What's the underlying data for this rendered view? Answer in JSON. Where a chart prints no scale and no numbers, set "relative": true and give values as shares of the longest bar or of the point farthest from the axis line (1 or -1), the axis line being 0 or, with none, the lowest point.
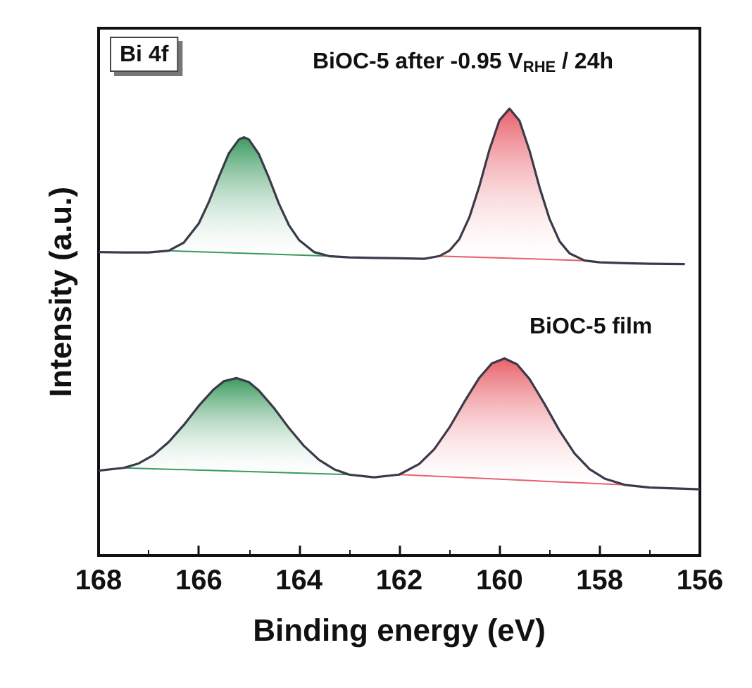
{
  "chart_data": {
    "type": "line",
    "xlabel": "Binding energy (eV)",
    "ylabel": "Intensity (a.u.)",
    "relative": true,
    "marker": "none",
    "xlim": [
      168,
      156
    ],
    "xticks": [
      168,
      166,
      164,
      162,
      160,
      158,
      156
    ],
    "annotations": [
      "Bi 4f",
      "BiOC-5 after -0.95 V$_{RHE}$ / 24h",
      "BiOC-5 film"
    ],
    "series": [
      {
        "type": "area",
        "color": "#3a9a5e",
        "x": [
          166.6,
          166.3,
          166.0,
          165.8,
          165.6,
          165.4,
          165.2,
          165.1,
          165.0,
          164.8,
          164.6,
          164.4,
          164.2,
          164.0,
          163.7,
          163.4
        ],
        "values": [
          0.682,
          0.7,
          0.743,
          0.791,
          0.847,
          0.9,
          0.931,
          0.936,
          0.931,
          0.898,
          0.845,
          0.787,
          0.739,
          0.706,
          0.679,
          0.67
        ]
      },
      {
        "type": "area",
        "color": "#e8606a",
        "x": [
          161.2,
          161.0,
          160.8,
          160.6,
          160.4,
          160.2,
          160.0,
          159.8,
          159.6,
          159.4,
          159.2,
          159.0,
          158.8,
          158.6,
          158.3
        ],
        "values": [
          0.67,
          0.682,
          0.708,
          0.757,
          0.827,
          0.908,
          0.974,
          1.0,
          0.973,
          0.906,
          0.824,
          0.753,
          0.703,
          0.676,
          0.66
        ]
      },
      {
        "type": "area",
        "color": "#3a9a5e",
        "x": [
          167.5,
          167.2,
          166.9,
          166.6,
          166.3,
          166,
          165.7,
          165.5,
          165.25,
          165,
          164.8,
          164.5,
          164.2,
          163.9,
          163.6,
          163.3,
          163
        ],
        "values": [
          0.196,
          0.206,
          0.225,
          0.254,
          0.292,
          0.335,
          0.372,
          0.39,
          0.397,
          0.388,
          0.369,
          0.33,
          0.285,
          0.245,
          0.214,
          0.193,
          0.181
        ]
      },
      {
        "type": "area",
        "color": "#e8606a",
        "x": [
          162,
          161.6,
          161.3,
          161,
          160.7,
          160.4,
          160.15,
          159.9,
          159.65,
          159.4,
          159.1,
          158.8,
          158.5,
          158.2,
          157.9,
          157.5
        ],
        "values": [
          0.181,
          0.205,
          0.238,
          0.286,
          0.344,
          0.398,
          0.43,
          0.441,
          0.428,
          0.395,
          0.339,
          0.279,
          0.228,
          0.193,
          0.172,
          0.158
        ]
      },
      {
        "color": "#3a3a4a",
        "x": [
          168,
          167.5,
          167,
          166.6,
          166.3,
          166.0,
          165.8,
          165.6,
          165.4,
          165.2,
          165.1,
          165.0,
          164.8,
          164.6,
          164.4,
          164.2,
          164.0,
          163.7,
          163.4,
          163,
          162.5,
          162,
          161.5,
          161.2,
          161,
          160.8,
          160.6,
          160.4,
          160.2,
          160,
          159.8,
          159.6,
          159.4,
          159.2,
          159,
          158.8,
          158.6,
          158.3,
          158,
          157.5,
          157,
          156.3
        ],
        "values": [
          0.679,
          0.678,
          0.678,
          0.682,
          0.7,
          0.743,
          0.791,
          0.847,
          0.9,
          0.931,
          0.936,
          0.931,
          0.898,
          0.845,
          0.787,
          0.739,
          0.706,
          0.679,
          0.67,
          0.667,
          0.666,
          0.665,
          0.664,
          0.67,
          0.682,
          0.708,
          0.757,
          0.827,
          0.908,
          0.974,
          1.0,
          0.973,
          0.906,
          0.824,
          0.753,
          0.703,
          0.676,
          0.66,
          0.656,
          0.654,
          0.653,
          0.652
        ]
      },
      {
        "color": "#3a3a4a",
        "x": [
          168,
          167.5,
          167.2,
          166.9,
          166.6,
          166.3,
          166,
          165.7,
          165.5,
          165.25,
          165,
          164.8,
          164.5,
          164.2,
          163.9,
          163.6,
          163.3,
          163,
          162.5,
          162,
          161.6,
          161.3,
          161,
          160.7,
          160.4,
          160.15,
          159.9,
          159.65,
          159.4,
          159.1,
          158.8,
          158.5,
          158.2,
          157.9,
          157.5,
          157,
          156.5,
          156
        ],
        "values": [
          0.19,
          0.196,
          0.206,
          0.225,
          0.254,
          0.292,
          0.335,
          0.372,
          0.39,
          0.397,
          0.388,
          0.369,
          0.33,
          0.285,
          0.245,
          0.214,
          0.193,
          0.181,
          0.175,
          0.181,
          0.205,
          0.238,
          0.286,
          0.344,
          0.398,
          0.43,
          0.441,
          0.428,
          0.395,
          0.339,
          0.279,
          0.228,
          0.193,
          0.172,
          0.158,
          0.152,
          0.15,
          0.148
        ]
      }
    ]
  }
}
